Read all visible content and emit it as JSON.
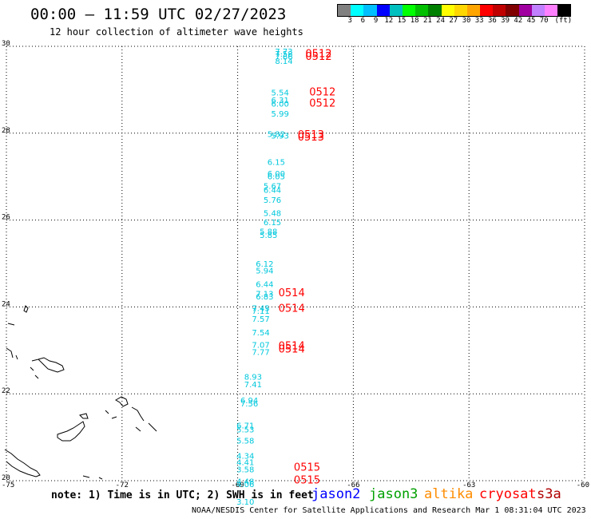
{
  "header": {
    "title": "00:00 – 11:59 UTC 02/27/2023",
    "subtitle": "12 hour collection of altimeter wave heights"
  },
  "colorbar": {
    "colors": [
      "#808080",
      "#00ffff",
      "#00bfff",
      "#0000ff",
      "#00bfbf",
      "#00ff00",
      "#00c000",
      "#008000",
      "#ffff00",
      "#ffd700",
      "#ffa500",
      "#ff0000",
      "#c00000",
      "#800000",
      "#a000a0",
      "#c080ff",
      "#ff80ff",
      "#000000"
    ],
    "labels": [
      "3",
      "6",
      "9",
      "12",
      "15",
      "18",
      "21",
      "24",
      "27",
      "30",
      "33",
      "36",
      "39",
      "42",
      "45",
      "70",
      "(ft)"
    ]
  },
  "chart_data": {
    "type": "scatter",
    "xlim": [
      -75,
      -60
    ],
    "ylim": [
      20,
      30
    ],
    "x_ticks": [
      "-75",
      "-72",
      "-69",
      "-66",
      "-63",
      "-60"
    ],
    "y_ticks": [
      "30",
      "28",
      "26",
      "24",
      "22",
      "20"
    ],
    "grid": true,
    "swh_points": [
      {
        "lon": -67.8,
        "lat": 29.89,
        "swh": "7.73"
      },
      {
        "lon": -67.8,
        "lat": 29.83,
        "swh": "7.58"
      },
      {
        "lon": -67.8,
        "lat": 29.77,
        "swh": "7.66"
      },
      {
        "lon": -67.8,
        "lat": 29.67,
        "swh": "8.14"
      },
      {
        "lon": -67.9,
        "lat": 28.94,
        "swh": "5.54"
      },
      {
        "lon": -67.9,
        "lat": 28.77,
        "swh": "6.31"
      },
      {
        "lon": -67.9,
        "lat": 28.69,
        "swh": "6.00"
      },
      {
        "lon": -67.9,
        "lat": 28.46,
        "swh": "5.99"
      },
      {
        "lon": -68.0,
        "lat": 27.99,
        "swh": "5.82"
      },
      {
        "lon": -67.9,
        "lat": 27.95,
        "swh": "5.93"
      },
      {
        "lon": -68.0,
        "lat": 27.34,
        "swh": "6.15"
      },
      {
        "lon": -68.0,
        "lat": 27.08,
        "swh": "6.00"
      },
      {
        "lon": -68.0,
        "lat": 27.01,
        "swh": "6.05"
      },
      {
        "lon": -68.1,
        "lat": 26.79,
        "swh": "5.67"
      },
      {
        "lon": -68.1,
        "lat": 26.7,
        "swh": "6.44"
      },
      {
        "lon": -68.1,
        "lat": 26.47,
        "swh": "5.76"
      },
      {
        "lon": -68.1,
        "lat": 26.17,
        "swh": "5.48"
      },
      {
        "lon": -68.1,
        "lat": 25.96,
        "swh": "6.15"
      },
      {
        "lon": -68.2,
        "lat": 25.74,
        "swh": "5.88"
      },
      {
        "lon": -68.2,
        "lat": 25.66,
        "swh": "5.85"
      },
      {
        "lon": -68.3,
        "lat": 25.0,
        "swh": "6.12"
      },
      {
        "lon": -68.3,
        "lat": 24.84,
        "swh": "5.94"
      },
      {
        "lon": -68.3,
        "lat": 24.53,
        "swh": "6.44"
      },
      {
        "lon": -68.3,
        "lat": 24.31,
        "swh": "7.13"
      },
      {
        "lon": -68.3,
        "lat": 24.25,
        "swh": "6.83"
      },
      {
        "lon": -68.4,
        "lat": 23.98,
        "swh": "7.45"
      },
      {
        "lon": -68.4,
        "lat": 23.92,
        "swh": "7.11"
      },
      {
        "lon": -68.4,
        "lat": 23.73,
        "swh": "7.57"
      },
      {
        "lon": -68.4,
        "lat": 23.42,
        "swh": "7.54"
      },
      {
        "lon": -68.4,
        "lat": 23.13,
        "swh": "7.07"
      },
      {
        "lon": -68.4,
        "lat": 22.97,
        "swh": "7.77"
      },
      {
        "lon": -68.6,
        "lat": 22.4,
        "swh": "8.93"
      },
      {
        "lon": -68.6,
        "lat": 22.22,
        "swh": "7.41"
      },
      {
        "lon": -68.7,
        "lat": 21.86,
        "swh": "6.94"
      },
      {
        "lon": -68.7,
        "lat": 21.78,
        "swh": "7.56"
      },
      {
        "lon": -68.8,
        "lat": 21.28,
        "swh": "6.71"
      },
      {
        "lon": -68.8,
        "lat": 21.19,
        "swh": "5.53"
      },
      {
        "lon": -68.8,
        "lat": 20.93,
        "swh": "5.58"
      },
      {
        "lon": -68.8,
        "lat": 20.58,
        "swh": "4.34"
      },
      {
        "lon": -68.8,
        "lat": 20.43,
        "swh": "4.41"
      },
      {
        "lon": -68.8,
        "lat": 20.27,
        "swh": "3.58"
      },
      {
        "lon": -68.8,
        "lat": 19.99,
        "swh": "4.48"
      },
      {
        "lon": -68.8,
        "lat": 19.93,
        "swh": "4.06"
      },
      {
        "lon": -68.8,
        "lat": 19.52,
        "swh": "3.10"
      }
    ],
    "pass_labels": [
      {
        "lon": -66.9,
        "lat": 29.84,
        "text": "0512"
      },
      {
        "lon": -66.9,
        "lat": 29.78,
        "text": "0512"
      },
      {
        "lon": -66.8,
        "lat": 28.96,
        "text": "0512"
      },
      {
        "lon": -66.8,
        "lat": 28.7,
        "text": "0512"
      },
      {
        "lon": -67.1,
        "lat": 27.98,
        "text": "0513"
      },
      {
        "lon": -67.1,
        "lat": 27.92,
        "text": "0513"
      },
      {
        "lon": -67.6,
        "lat": 24.34,
        "text": "0514"
      },
      {
        "lon": -67.6,
        "lat": 23.98,
        "text": "0514"
      },
      {
        "lon": -67.6,
        "lat": 23.12,
        "text": "0514"
      },
      {
        "lon": -67.6,
        "lat": 23.04,
        "text": "0514"
      },
      {
        "lon": -67.2,
        "lat": 20.32,
        "text": "0515"
      },
      {
        "lon": -67.2,
        "lat": 20.03,
        "text": "0515"
      }
    ],
    "swh_color": "#00c8dc",
    "pass_color": "#ff0000"
  },
  "footer": {
    "note": "note: 1) Time is in UTC; 2) SWH is in feet",
    "missions": [
      {
        "name": "jason2",
        "color": "#0000ff"
      },
      {
        "name": "jason3",
        "color": "#00a000"
      },
      {
        "name": "altika",
        "color": "#ff8c00"
      },
      {
        "name": "cryosat",
        "color": "#ff0000"
      },
      {
        "name": "s3a",
        "color": "#b00000"
      }
    ],
    "credit": "NOAA/NESDIS Center for Satellite Applications and Research   Mar  1 08:31:04 UTC 2023"
  }
}
